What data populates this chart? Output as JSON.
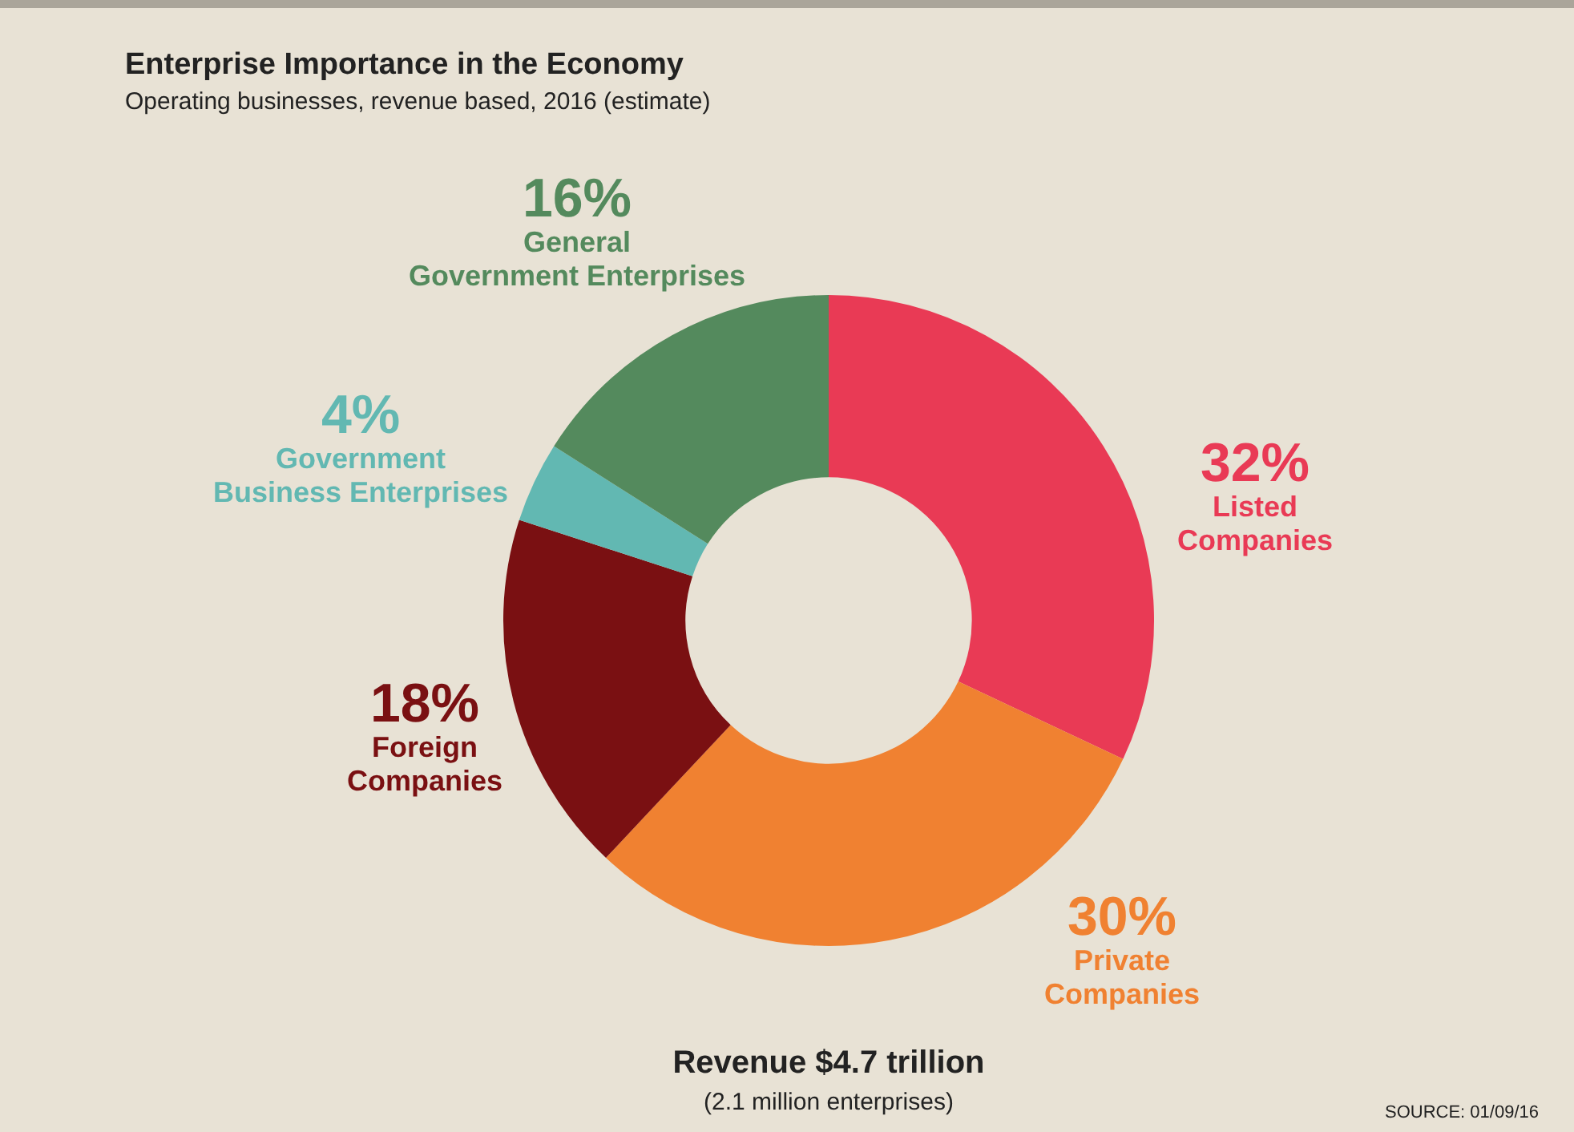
{
  "chart_data": {
    "type": "donut",
    "title": "Enterprise Importance in the Economy",
    "subtitle": "Operating businesses, revenue based, 2016 (estimate)",
    "categories": [
      "Listed Companies",
      "Private Companies",
      "Foreign Companies",
      "Government Business Enterprises",
      "General Government Enterprises"
    ],
    "values": [
      32,
      30,
      18,
      4,
      16
    ],
    "value_labels": [
      "32%",
      "30%",
      "18%",
      "4%",
      "16%"
    ],
    "colors": [
      "#e93a55",
      "#f08131",
      "#7a1012",
      "#62b8b2",
      "#548a5d"
    ],
    "annotations": [
      "Revenue $4.7 trillion",
      "(2.1 million enterprises)",
      "SOURCE: 01/09/16"
    ],
    "legend": false
  }
}
